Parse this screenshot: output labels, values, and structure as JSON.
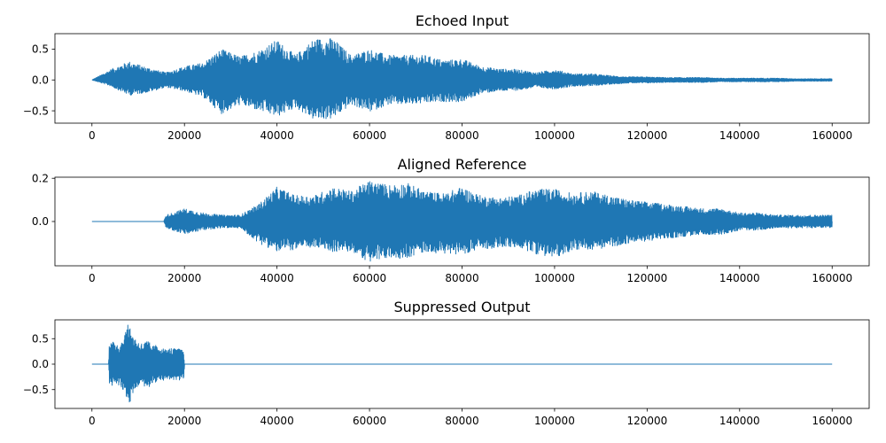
{
  "chart_data": [
    {
      "type": "line",
      "title": "Echoed Input",
      "xlabel": "",
      "ylabel": "",
      "xlim": [
        -8000,
        168000
      ],
      "ylim": [
        -0.7,
        0.75
      ],
      "xticks": [
        0,
        20000,
        40000,
        60000,
        80000,
        100000,
        120000,
        140000,
        160000
      ],
      "xtick_labels": [
        "0",
        "20000",
        "40000",
        "60000",
        "80000",
        "100000",
        "120000",
        "140000",
        "160000"
      ],
      "yticks": [
        0.5,
        0.0,
        -0.5
      ],
      "ytick_labels": [
        "0.5",
        "0.0",
        "−0.5"
      ],
      "color": "#1f77b4",
      "grid": false,
      "series": [
        {
          "x": [
            0,
            4000,
            8000,
            12000,
            16000,
            20000,
            24000,
            28000,
            32000,
            36000,
            40000,
            44000,
            48000,
            52000,
            56000,
            60000,
            64000,
            68000,
            72000,
            76000,
            80000,
            84000,
            88000,
            92000,
            96000,
            100000,
            104000,
            108000,
            112000,
            116000,
            120000,
            124000,
            128000,
            132000,
            136000,
            140000,
            144000,
            148000,
            152000,
            156000,
            160000
          ],
          "upper": [
            0.0,
            0.17,
            0.3,
            0.2,
            0.12,
            0.22,
            0.28,
            0.5,
            0.38,
            0.48,
            0.65,
            0.4,
            0.67,
            0.68,
            0.4,
            0.5,
            0.4,
            0.4,
            0.4,
            0.32,
            0.34,
            0.22,
            0.18,
            0.17,
            0.12,
            0.17,
            0.1,
            0.1,
            0.07,
            0.05,
            0.05,
            0.04,
            0.04,
            0.04,
            0.03,
            0.03,
            0.03,
            0.03,
            0.02,
            0.02,
            0.02
          ],
          "lower": [
            0.0,
            -0.1,
            -0.25,
            -0.2,
            -0.12,
            -0.18,
            -0.28,
            -0.55,
            -0.4,
            -0.5,
            -0.6,
            -0.45,
            -0.65,
            -0.63,
            -0.4,
            -0.52,
            -0.4,
            -0.4,
            -0.38,
            -0.35,
            -0.36,
            -0.22,
            -0.18,
            -0.17,
            -0.12,
            -0.15,
            -0.1,
            -0.1,
            -0.07,
            -0.05,
            -0.05,
            -0.04,
            -0.04,
            -0.04,
            -0.03,
            -0.03,
            -0.03,
            -0.03,
            -0.02,
            -0.02,
            -0.02
          ]
        }
      ]
    },
    {
      "type": "line",
      "title": "Aligned Reference",
      "xlabel": "",
      "ylabel": "",
      "xlim": [
        -8000,
        168000
      ],
      "ylim": [
        -0.205,
        0.205
      ],
      "xticks": [
        0,
        20000,
        40000,
        60000,
        80000,
        100000,
        120000,
        140000,
        160000
      ],
      "xtick_labels": [
        "0",
        "20000",
        "40000",
        "60000",
        "80000",
        "100000",
        "120000",
        "140000",
        "160000"
      ],
      "yticks": [
        0.2,
        0.0
      ],
      "ytick_labels": [
        "0.2",
        "0.0"
      ],
      "color": "#1f77b4",
      "grid": false,
      "series": [
        {
          "x": [
            0,
            15500,
            16000,
            20000,
            24000,
            28000,
            32000,
            36000,
            40000,
            44000,
            48000,
            52000,
            56000,
            60000,
            64000,
            68000,
            72000,
            76000,
            80000,
            84000,
            88000,
            92000,
            96000,
            100000,
            104000,
            108000,
            112000,
            116000,
            120000,
            124000,
            128000,
            132000,
            136000,
            140000,
            144000,
            148000,
            152000,
            156000,
            160000
          ],
          "upper": [
            0.0,
            0.0,
            0.03,
            0.06,
            0.04,
            0.03,
            0.03,
            0.08,
            0.16,
            0.12,
            0.12,
            0.16,
            0.14,
            0.19,
            0.17,
            0.18,
            0.14,
            0.13,
            0.16,
            0.12,
            0.11,
            0.12,
            0.15,
            0.15,
            0.13,
            0.14,
            0.12,
            0.1,
            0.09,
            0.08,
            0.07,
            0.06,
            0.06,
            0.04,
            0.04,
            0.03,
            0.03,
            0.03,
            0.03
          ],
          "lower": [
            0.0,
            0.0,
            -0.03,
            -0.06,
            -0.04,
            -0.03,
            -0.03,
            -0.1,
            -0.14,
            -0.13,
            -0.12,
            -0.14,
            -0.14,
            -0.19,
            -0.17,
            -0.17,
            -0.14,
            -0.15,
            -0.15,
            -0.13,
            -0.12,
            -0.12,
            -0.15,
            -0.17,
            -0.13,
            -0.13,
            -0.12,
            -0.1,
            -0.09,
            -0.08,
            -0.07,
            -0.06,
            -0.06,
            -0.04,
            -0.04,
            -0.03,
            -0.03,
            -0.03,
            -0.03
          ]
        }
      ]
    },
    {
      "type": "line",
      "title": "Suppressed Output",
      "xlabel": "",
      "ylabel": "",
      "xlim": [
        -8000,
        168000
      ],
      "ylim": [
        -0.87,
        0.87
      ],
      "xticks": [
        0,
        20000,
        40000,
        60000,
        80000,
        100000,
        120000,
        140000,
        160000
      ],
      "xtick_labels": [
        "0",
        "20000",
        "40000",
        "60000",
        "80000",
        "100000",
        "120000",
        "140000",
        "160000"
      ],
      "yticks": [
        0.5,
        0.0,
        -0.5
      ],
      "ytick_labels": [
        "0.5",
        "0.0",
        "−0.5"
      ],
      "color": "#1f77b4",
      "grid": false,
      "series": [
        {
          "x": [
            0,
            3600,
            3700,
            5000,
            6000,
            7000,
            8000,
            9000,
            10000,
            11000,
            12000,
            13000,
            14000,
            15000,
            16000,
            17000,
            18000,
            19000,
            19800,
            20000,
            160000
          ],
          "upper": [
            0.0,
            0.0,
            0.4,
            0.45,
            0.38,
            0.6,
            0.82,
            0.55,
            0.45,
            0.4,
            0.48,
            0.35,
            0.38,
            0.33,
            0.28,
            0.32,
            0.3,
            0.3,
            0.28,
            0.0,
            0.0
          ],
          "lower": [
            0.0,
            0.0,
            -0.42,
            -0.45,
            -0.4,
            -0.62,
            -0.8,
            -0.55,
            -0.45,
            -0.42,
            -0.48,
            -0.38,
            -0.35,
            -0.33,
            -0.3,
            -0.32,
            -0.3,
            -0.32,
            -0.3,
            0.0,
            0.0
          ]
        }
      ]
    }
  ]
}
